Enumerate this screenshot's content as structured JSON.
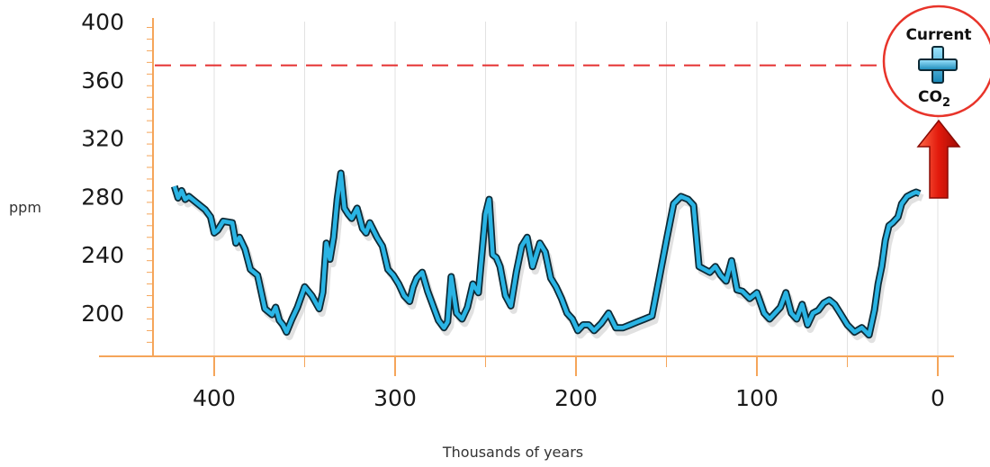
{
  "chart_data": {
    "type": "line",
    "xlabel": "Thousands of years",
    "ylabel": "ppm",
    "xlim": [
      435,
      -8
    ],
    "ylim": [
      170,
      400
    ],
    "x_axis_reversed": true,
    "x_ticks": [
      400,
      300,
      200,
      100,
      0
    ],
    "x_minor_ticks": [
      350,
      250,
      150,
      50
    ],
    "y_ticks": [
      200,
      240,
      280,
      320,
      360,
      400
    ],
    "grid": "vertical",
    "reference_line": {
      "y": 370,
      "style": "dashed",
      "color": "#e53030"
    },
    "callout": {
      "line1": "Current",
      "co2_base": "CO",
      "co2_sub": "2",
      "position": "top-right"
    },
    "colors": {
      "axis": "#f5a55a",
      "grid": "#e2e2e2",
      "line": "#2ab4e4",
      "line_dark": "#0d2a36",
      "reference": "#e53030"
    },
    "series": [
      {
        "x": [
          422,
          420,
          418,
          416,
          414,
          410,
          405,
          402,
          400,
          398,
          395,
          390,
          388,
          386,
          383,
          380,
          376,
          372,
          368,
          366,
          364,
          362,
          360,
          357,
          354,
          350,
          346,
          342,
          340,
          338,
          336,
          334,
          332,
          330,
          328,
          326,
          324,
          321,
          318,
          316,
          314,
          310,
          307,
          304,
          301,
          298,
          295,
          292,
          290,
          288,
          285,
          282,
          279,
          276,
          273,
          271,
          269,
          266,
          263,
          260,
          257,
          254,
          250,
          248,
          246,
          244,
          242,
          239,
          236,
          233,
          230,
          227,
          224,
          220,
          217,
          214,
          211,
          208,
          205,
          202,
          199,
          196,
          193,
          190,
          186,
          182,
          178,
          174,
          170,
          166,
          162,
          158,
          154,
          150,
          146,
          142,
          138,
          135,
          132,
          129,
          126,
          123,
          120,
          117,
          114,
          111,
          108,
          104,
          100,
          96,
          93,
          90,
          87,
          84,
          81,
          78,
          75,
          72,
          69,
          66,
          63,
          60,
          57,
          54,
          50,
          46,
          42,
          38,
          35,
          33,
          31,
          29,
          27,
          25,
          22,
          20,
          17,
          14,
          12,
          10
        ],
        "values": [
          287,
          279,
          284,
          278,
          280,
          276,
          271,
          266,
          255,
          257,
          263,
          262,
          248,
          252,
          244,
          230,
          226,
          203,
          199,
          204,
          195,
          192,
          187,
          196,
          204,
          218,
          212,
          203,
          214,
          248,
          237,
          252,
          278,
          296,
          272,
          268,
          265,
          272,
          258,
          255,
          262,
          252,
          246,
          230,
          226,
          220,
          212,
          208,
          218,
          224,
          228,
          215,
          205,
          195,
          190,
          194,
          225,
          200,
          196,
          204,
          220,
          214,
          268,
          278,
          240,
          238,
          232,
          212,
          205,
          228,
          246,
          252,
          232,
          248,
          242,
          224,
          218,
          210,
          200,
          196,
          188,
          192,
          192,
          188,
          193,
          200,
          190,
          190,
          192,
          194,
          196,
          198,
          224,
          250,
          275,
          280,
          278,
          274,
          232,
          230,
          228,
          232,
          226,
          222,
          236,
          216,
          215,
          210,
          214,
          200,
          196,
          200,
          204,
          214,
          200,
          196,
          206,
          192,
          200,
          202,
          207,
          209,
          206,
          200,
          192,
          187,
          190,
          185,
          202,
          220,
          232,
          250,
          260,
          262,
          266,
          275,
          280,
          282,
          283,
          282
        ]
      }
    ]
  }
}
